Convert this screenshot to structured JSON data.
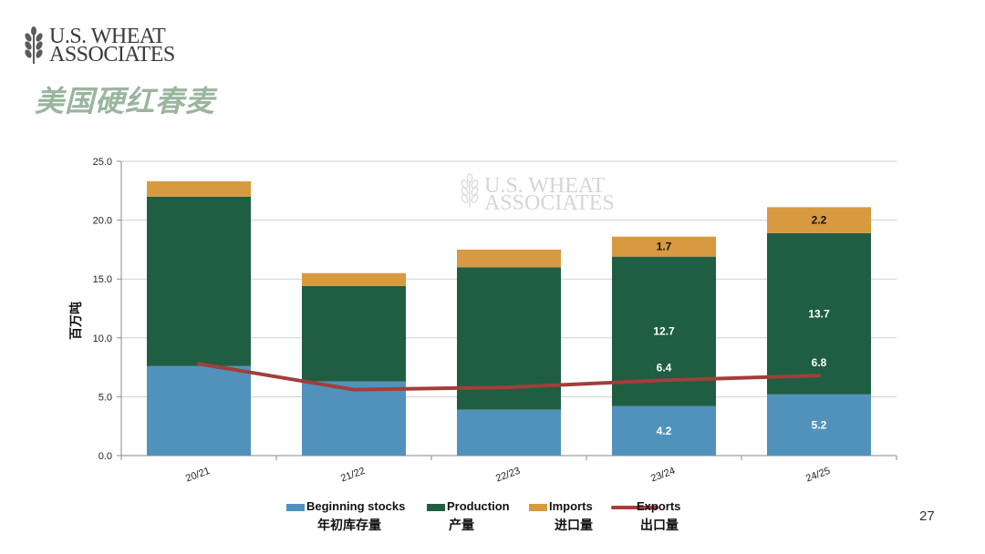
{
  "header": {
    "logo_line1": "U.S. WHEAT",
    "logo_line2": "ASSOCIATES",
    "title": "美国硬红春麦",
    "page_number": "27"
  },
  "colors": {
    "beginning_stocks": "#5192bd",
    "production": "#1f5e43",
    "imports": "#d89a40",
    "exports": "#a23e3b",
    "title": "#9ab59e"
  },
  "chart_data": {
    "type": "bar",
    "stacked": true,
    "categories": [
      "20/21",
      "21/22",
      "22/23",
      "23/24",
      "24/25"
    ],
    "series": [
      {
        "key": "beginning_stocks",
        "name": "Beginning stocks",
        "name_zh": "年初库存量",
        "values": [
          7.6,
          6.3,
          3.9,
          4.2,
          5.2
        ]
      },
      {
        "key": "production",
        "name": "Production",
        "name_zh": "产量",
        "values": [
          14.4,
          8.1,
          12.1,
          12.7,
          13.7
        ]
      },
      {
        "key": "imports",
        "name": "Imports",
        "name_zh": "进口量",
        "values": [
          1.3,
          1.1,
          1.5,
          1.7,
          2.2
        ]
      }
    ],
    "line_series": {
      "key": "exports",
      "name": "Exports",
      "name_zh": "出口量",
      "values": [
        7.8,
        5.6,
        5.8,
        6.4,
        6.8
      ]
    },
    "data_labels": [
      {
        "cat": 3,
        "series": "imports",
        "text": "1.7"
      },
      {
        "cat": 3,
        "series": "production",
        "text": "12.7"
      },
      {
        "cat": 3,
        "series": "exports",
        "text": "6.4"
      },
      {
        "cat": 3,
        "series": "beginning_stocks",
        "text": "4.2"
      },
      {
        "cat": 4,
        "series": "imports",
        "text": "2.2"
      },
      {
        "cat": 4,
        "series": "production",
        "text": "13.7"
      },
      {
        "cat": 4,
        "series": "exports",
        "text": "6.8"
      },
      {
        "cat": 4,
        "series": "beginning_stocks",
        "text": "5.2"
      }
    ],
    "ylabel": "百万吨",
    "ylim": [
      0,
      25
    ],
    "yticks": [
      "0.0",
      "5.0",
      "10.0",
      "15.0",
      "20.0",
      "25.0"
    ],
    "grid": true,
    "legend_position": "bottom",
    "watermark_line1": "U.S. WHEAT",
    "watermark_line2": "ASSOCIATES"
  }
}
